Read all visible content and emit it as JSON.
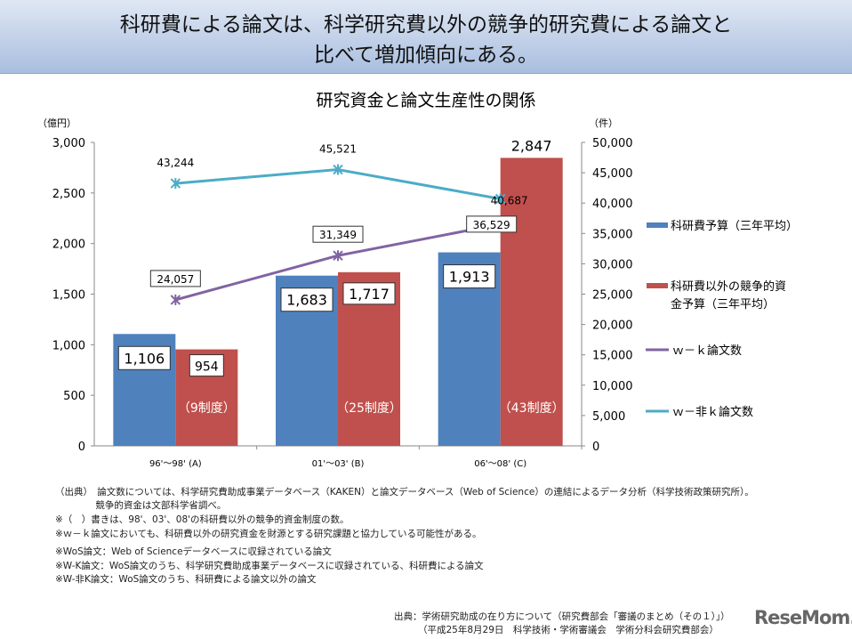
{
  "header": {
    "title_line1": "科研費による論文は、科学研究費以外の競争的研究費による論文と",
    "title_line2": "比べて増加傾向にある。"
  },
  "chart_data": {
    "type": "bar",
    "title": "研究資金と論文生産性の関係",
    "ylabel": "（億円）",
    "y2label": "（件）",
    "ylim": [
      0,
      3000
    ],
    "y2lim": [
      0,
      50000
    ],
    "yticks": [
      "0",
      "500",
      "1,000",
      "1,500",
      "2,000",
      "2,500",
      "3,000"
    ],
    "y2ticks": [
      "0",
      "5,000",
      "10,000",
      "15,000",
      "20,000",
      "25,000",
      "30,000",
      "35,000",
      "40,000",
      "45,000",
      "50,000"
    ],
    "categories": [
      "96'～98' (A)",
      "01'～03' (B)",
      "06'～08' (C)"
    ],
    "bar_series": [
      {
        "name": "科研費予算（三年平均）",
        "color": "#4f81bd",
        "values": [
          1106,
          1683,
          1913
        ],
        "labels": [
          "1,106",
          "1,683",
          "1,913"
        ]
      },
      {
        "name": "科研費以外の競争的資金予算（三年平均）",
        "color": "#c0504d",
        "values": [
          954,
          1717,
          2847
        ],
        "labels": [
          "954",
          "1,717",
          "2,847"
        ]
      }
    ],
    "bar_annotations": [
      "（9制度）",
      "（25制度）",
      "（43制度）"
    ],
    "line_series": [
      {
        "name": "ｗ－ｋ論文数",
        "color": "#8064a2",
        "axis": "right",
        "values": [
          24057,
          31349,
          36529
        ],
        "labels": [
          "24,057",
          "31,349",
          "36,529"
        ]
      },
      {
        "name": "ｗ－非ｋ論文数",
        "color": "#4bacc6",
        "axis": "right",
        "values": [
          43244,
          45521,
          40687
        ],
        "labels": [
          "43,244",
          "45,521",
          "40,687"
        ]
      }
    ],
    "legend": "right",
    "legend_labels": {
      "s1": "科研費予算（三年平均）",
      "s2a": "科研費以外の競争的資",
      "s2b": "金予算（三年平均）",
      "s3": "ｗ－ｋ論文数",
      "s4": "ｗ－非ｋ論文数"
    }
  },
  "notes": [
    "（出典）　論文数については、科学研究費助成事業データベース（KAKEN）と論文データベース（Web of Science）の連結によるデータ分析（科学技術政策研究所）。",
    "　　　　 競争的資金は文部科学省調べ。",
    "※（　）書きは、98'、03'、08'の科研費以外の競争的資金制度の数。",
    "※ｗ－ｋ論文においても、科研費以外の研究資金を財源とする研究課題と協力している可能性がある。",
    "※WoS論文：Web of Scienceデータベースに収録されている論文",
    "※W-K論文：WoS論文のうち、科学研究費助成事業データベースに収録されている、科研費による論文",
    "※W-非K論文：WoS論文のうち、科研費による論文以外の論文"
  ],
  "source": {
    "line1": "出典：学術研究助成の在り方について（研究費部会「審議のまとめ（その１）」）",
    "line2": "（平成25年8月29日　科学技術・学術審議会　学術分科会研究費部会）"
  },
  "logo": "ReseMom"
}
